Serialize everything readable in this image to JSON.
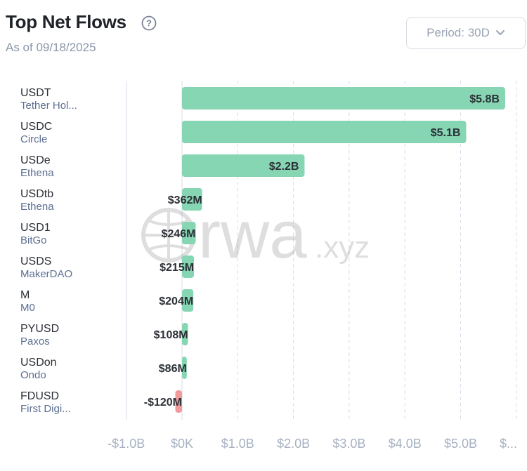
{
  "header": {
    "title": "Top Net Flows",
    "subtitle": "As of 09/18/2025",
    "period_label": "Period: 30D"
  },
  "colors": {
    "positive": "#86d5b3",
    "negative": "#f09a9a",
    "grid": "#d7dde8",
    "tick": "#a7b1c2"
  },
  "chart_data": {
    "type": "bar",
    "orientation": "horizontal",
    "categories": [
      "USDT",
      "USDC",
      "USDe",
      "USDtb",
      "USD1",
      "USDS",
      "M",
      "PYUSD",
      "USDon",
      "FDUSD"
    ],
    "issuers": [
      "Tether Hol...",
      "Circle",
      "Ethena",
      "Ethena",
      "BitGo",
      "MakerDAO",
      "M0",
      "Paxos",
      "Ondo",
      "First Digi..."
    ],
    "values": [
      5.8,
      5.1,
      2.2,
      0.362,
      0.246,
      0.215,
      0.204,
      0.108,
      0.086,
      -0.12
    ],
    "value_labels": [
      "$5.8B",
      "$5.1B",
      "$2.2B",
      "$362M",
      "$246M",
      "$215M",
      "$204M",
      "$108M",
      "$86M",
      "-$120M"
    ],
    "value_unit": "USD billions",
    "xlim": [
      -1.0,
      6.0
    ],
    "x_ticks": [
      -1,
      0,
      1,
      2,
      3,
      4,
      5,
      6
    ],
    "x_tick_labels": [
      "-$1.0B",
      "$0K",
      "$1.0B",
      "$2.0B",
      "$3.0B",
      "$4.0B",
      "$5.0B",
      "$..."
    ],
    "grid": "vertical dashed",
    "watermark": "rwa.xyz"
  }
}
